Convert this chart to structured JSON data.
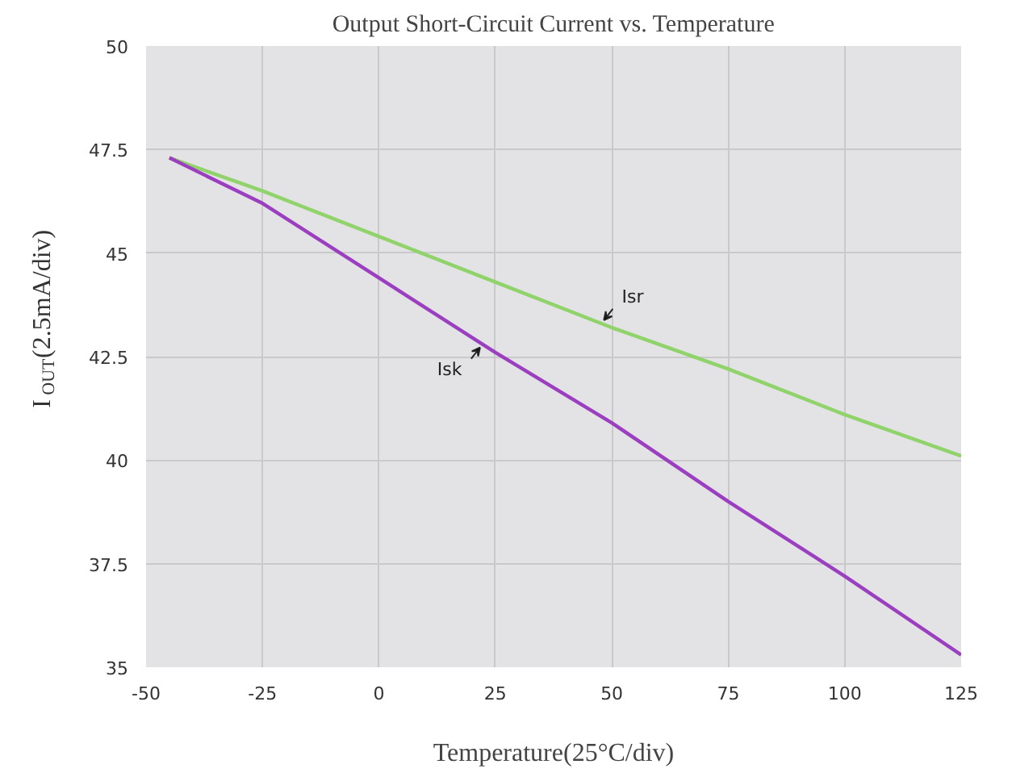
{
  "chart_data": {
    "type": "line",
    "title": "Output Short-Circuit Current vs. Temperature",
    "xlabel": "Temperature(25°C/div)",
    "ylabel": "I$_{OUT}$(2.5mA/div)",
    "x": [
      -45,
      -25,
      0,
      25,
      50,
      75,
      100,
      125
    ],
    "series": [
      {
        "color": "#8fd36a",
        "values": [
          47.3,
          46.5,
          45.4,
          44.3,
          43.2,
          42.2,
          41.1,
          40.1
        ]
      },
      {
        "color": "#9b3fc0",
        "values": [
          47.3,
          46.2,
          44.4,
          42.6,
          40.9,
          39.0,
          37.2,
          35.3
        ]
      }
    ],
    "annotations": [
      {
        "text": "Isr",
        "x": 48,
        "y": 43.3
      },
      {
        "text": "Isk",
        "x": 22,
        "y": 42.8
      }
    ],
    "xlim": [
      -50,
      125
    ],
    "ylim": [
      35,
      50
    ],
    "xticks": [
      -50,
      -25,
      0,
      25,
      50,
      75,
      100,
      125
    ],
    "yticks": [
      35,
      37.5,
      40,
      42.5,
      45,
      47.5,
      50
    ],
    "grid": true
  }
}
